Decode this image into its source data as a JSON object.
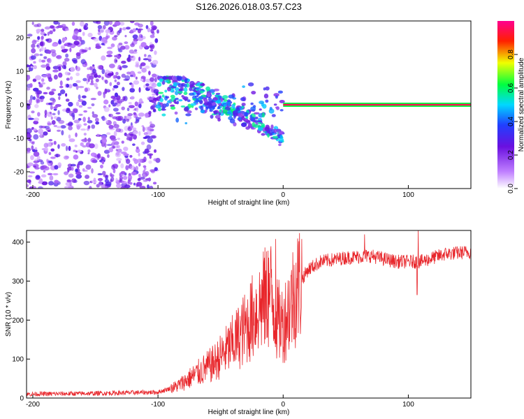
{
  "title": "S126.2026.018.03.57.C23",
  "chart_data": [
    {
      "type": "heatmap",
      "xlabel": "Height of straight line (km)",
      "ylabel": "Frequency (Hz)",
      "xlim": [
        -205,
        150
      ],
      "ylim": [
        -25,
        25
      ],
      "xticks": [
        -200,
        -100,
        0,
        100
      ],
      "yticks": [
        -20,
        -10,
        0,
        10,
        20
      ],
      "colorbar": {
        "label": "Normalized spectral amplitude",
        "range": [
          0,
          1
        ],
        "ticks": [
          "0.0",
          "0.2",
          "0.4",
          "0.6",
          "0.8"
        ],
        "colors": [
          "#ffffff",
          "#a020f0",
          "#2020ff",
          "#00ffff",
          "#00ff00",
          "#ffff00",
          "#ff0000",
          "#ff00a0"
        ]
      },
      "features": [
        {
          "label": "diffuse noise",
          "x_range": [
            -205,
            -100
          ],
          "freq_range": [
            -25,
            25
          ],
          "amplitude": 0.15
        },
        {
          "label": "scintillation scatter",
          "x_range": [
            -100,
            0
          ],
          "freq_range": [
            -12,
            8
          ],
          "amplitude": 0.4
        },
        {
          "label": "steady carrier",
          "x_range": [
            0,
            150
          ],
          "freq": 0,
          "amplitude": 0.95
        }
      ]
    },
    {
      "type": "line",
      "xlabel": "Height of straight line (km)",
      "ylabel": "SNR (10 * v/v)",
      "xlim": [
        -205,
        150
      ],
      "ylim": [
        0,
        430
      ],
      "xticks": [
        -200,
        -100,
        0,
        100
      ],
      "yticks": [
        0,
        100,
        200,
        300,
        400
      ],
      "color": "#e8262b",
      "series": [
        {
          "name": "SNR",
          "x": [
            -205,
            -150,
            -100,
            -85,
            -70,
            -55,
            -40,
            -30,
            -20,
            -10,
            -5,
            0,
            10,
            20,
            30,
            50,
            70,
            90,
            110,
            130,
            150
          ],
          "values": [
            10,
            12,
            15,
            30,
            60,
            90,
            140,
            180,
            230,
            270,
            200,
            190,
            280,
            330,
            350,
            360,
            365,
            350,
            350,
            370,
            375
          ]
        }
      ],
      "spikes": [
        {
          "x": -15,
          "value": 360
        },
        {
          "x": -12,
          "value": 378
        },
        {
          "x": -6,
          "value": 408
        },
        {
          "x": 65,
          "value": 420
        },
        {
          "x": 108,
          "value": 430
        },
        {
          "x": 107,
          "value": 265
        }
      ]
    }
  ]
}
